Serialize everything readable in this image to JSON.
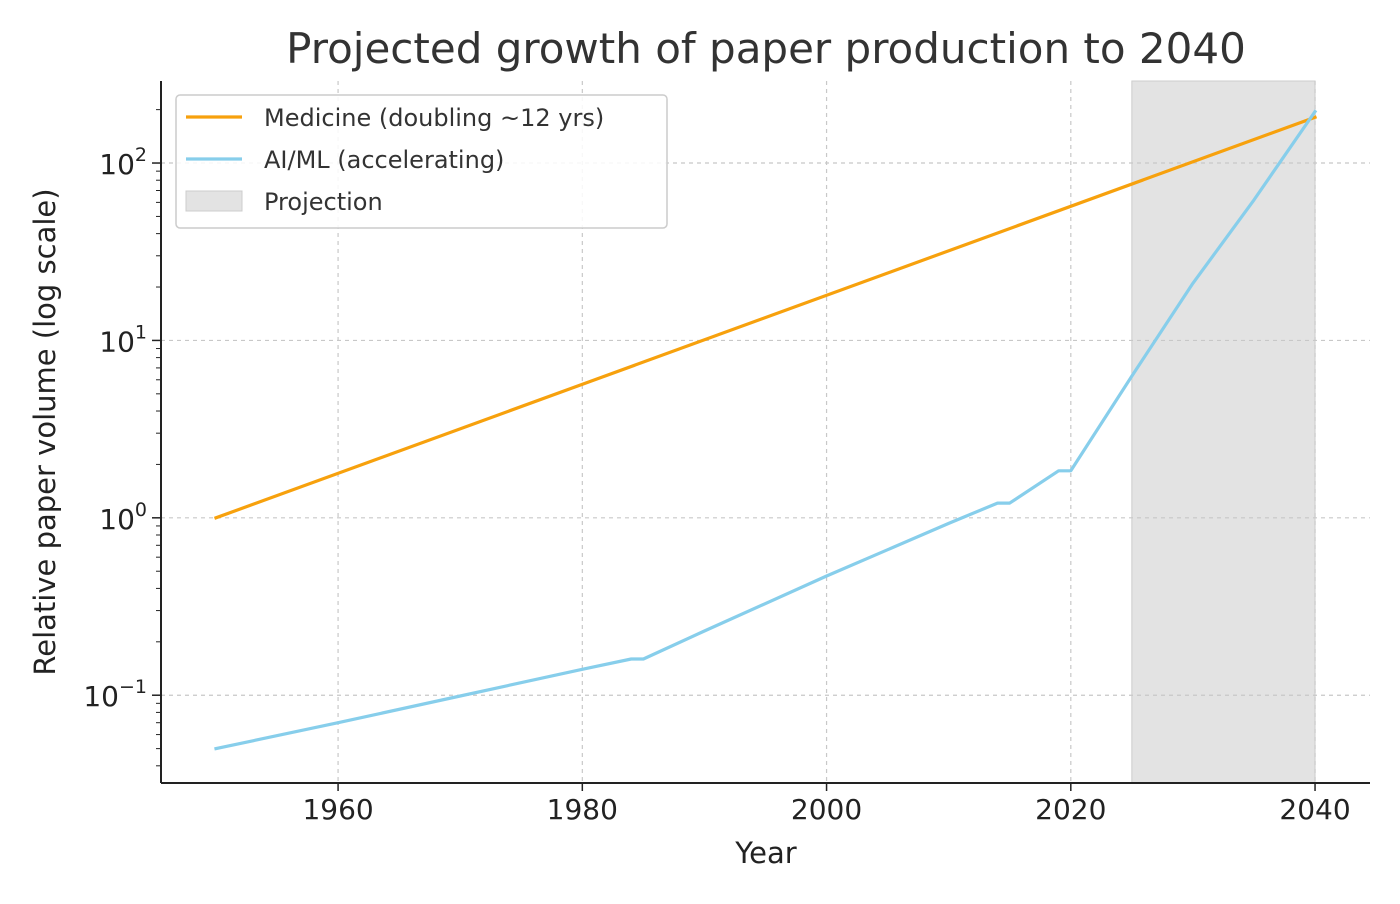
{
  "chart_data": {
    "type": "line",
    "title": "Projected growth of paper production to 2040",
    "xlabel": "Year",
    "ylabel": "Relative paper volume (log scale)",
    "xlim": [
      1945.5,
      2044.5
    ],
    "ylim": [
      0.032,
      290
    ],
    "yscale": "log",
    "grid": true,
    "x_ticks": [
      1960,
      1980,
      2000,
      2020,
      2040
    ],
    "x_tick_labels": [
      "1960",
      "1980",
      "2000",
      "2020",
      "2040"
    ],
    "y_ticks": [
      0.1,
      1,
      10,
      100
    ],
    "y_tick_labels": [
      {
        "base": "10",
        "exp": "−1"
      },
      {
        "base": "10",
        "exp": "0"
      },
      {
        "base": "10",
        "exp": "1"
      },
      {
        "base": "10",
        "exp": "2"
      }
    ],
    "projection": {
      "label": "Projection",
      "start": 2025,
      "end": 2040,
      "color": "#e3e3e3"
    },
    "legend_position": "top-left",
    "series": [
      {
        "name": "Medicine (doubling ~12 yrs)",
        "color": "#f7a10d",
        "x": [
          1950,
          2040
        ],
        "y": [
          1.0,
          181
        ]
      },
      {
        "name": "AI/ML (accelerating)",
        "color": "#87ceeb",
        "x": [
          1950,
          1960,
          1970,
          1980,
          1984,
          1985,
          1990,
          2000,
          2010,
          2014,
          2015,
          2019,
          2020,
          2025,
          2030,
          2035,
          2040
        ],
        "y": [
          0.05,
          0.07,
          0.099,
          0.14,
          0.16,
          0.16,
          0.23,
          0.47,
          0.93,
          1.21,
          1.21,
          1.84,
          1.84,
          6.3,
          21,
          62,
          195
        ]
      }
    ]
  }
}
